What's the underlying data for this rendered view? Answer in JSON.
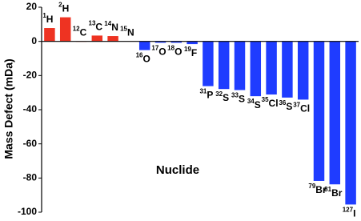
{
  "chart_data": {
    "type": "bar",
    "y_label": "Mass Defect (mDa)",
    "x_label": "Nuclide",
    "mass_numbers": [
      "1",
      "2",
      "12",
      "13",
      "14",
      "15",
      "16",
      "17",
      "18",
      "19",
      "31",
      "32",
      "33",
      "34",
      "35",
      "36",
      "37",
      "79",
      "81",
      "127"
    ],
    "categories": [
      "H",
      "H",
      "C",
      "C",
      "N",
      "N",
      "O",
      "O",
      "O",
      "F",
      "P",
      "S",
      "S",
      "S",
      "Cl",
      "S",
      "Cl",
      "Br",
      "Br",
      "I"
    ],
    "values": [
      7.8,
      14.1,
      0,
      3.4,
      3.1,
      0.1,
      -5.1,
      -0.8,
      -0.8,
      -1.6,
      -26.2,
      -27.9,
      -28.5,
      -32.1,
      -31.1,
      -32.9,
      -34.1,
      -81.7,
      -83.7,
      -95.5
    ],
    "positive_color": "#ee3322",
    "negative_color": "#1f3cff",
    "ylim": [
      -100,
      20
    ],
    "yticks": [
      20,
      0,
      -20,
      -40,
      -60,
      -80,
      -100
    ]
  }
}
